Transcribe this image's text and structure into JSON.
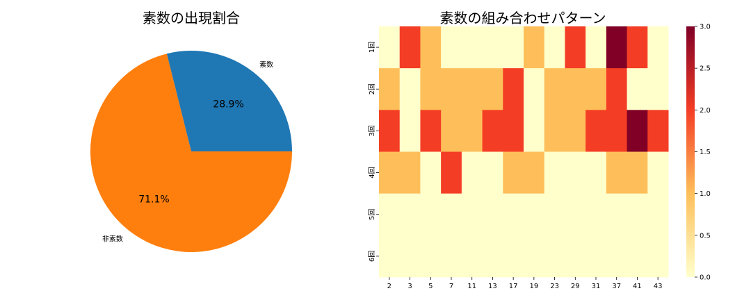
{
  "chart_data": [
    {
      "type": "pie",
      "title": "素数の出現割合",
      "labels": [
        "素数",
        "非素数"
      ],
      "values": [
        28.9,
        71.1
      ],
      "value_labels": [
        "28.9%",
        "71.1%"
      ],
      "colors": [
        "#1f77b4",
        "#ff7f0e"
      ]
    },
    {
      "type": "heatmap",
      "title": "素数の組み合わせパターン",
      "x": [
        "2",
        "3",
        "5",
        "7",
        "11",
        "13",
        "17",
        "19",
        "23",
        "29",
        "31",
        "37",
        "41",
        "43"
      ],
      "y": [
        "1回",
        "2回",
        "3回",
        "4回",
        "5回",
        "6回"
      ],
      "values": [
        [
          0,
          2,
          1,
          0,
          0,
          0,
          0,
          1,
          0,
          2,
          0,
          3,
          2,
          0
        ],
        [
          1,
          0,
          1,
          1,
          1,
          1,
          2,
          0,
          1,
          1,
          1,
          2,
          0,
          0
        ],
        [
          2,
          0,
          2,
          1,
          1,
          2,
          2,
          0,
          1,
          1,
          2,
          2,
          3,
          2
        ],
        [
          1,
          1,
          0,
          2,
          0,
          0,
          1,
          1,
          0,
          0,
          0,
          1,
          1,
          0
        ],
        [
          0,
          0,
          0,
          0,
          0,
          0,
          0,
          0,
          0,
          0,
          0,
          0,
          0,
          0
        ],
        [
          0,
          0,
          0,
          0,
          0,
          0,
          0,
          0,
          0,
          0,
          0,
          0,
          0,
          0
        ]
      ],
      "colormap": [
        "#ffffcc",
        "#febf5a",
        "#f43d25",
        "#800026"
      ],
      "zlim": [
        0,
        3
      ],
      "colorbar_ticks": [
        "0.0",
        "0.5",
        "1.0",
        "1.5",
        "2.0",
        "2.5",
        "3.0"
      ]
    }
  ]
}
